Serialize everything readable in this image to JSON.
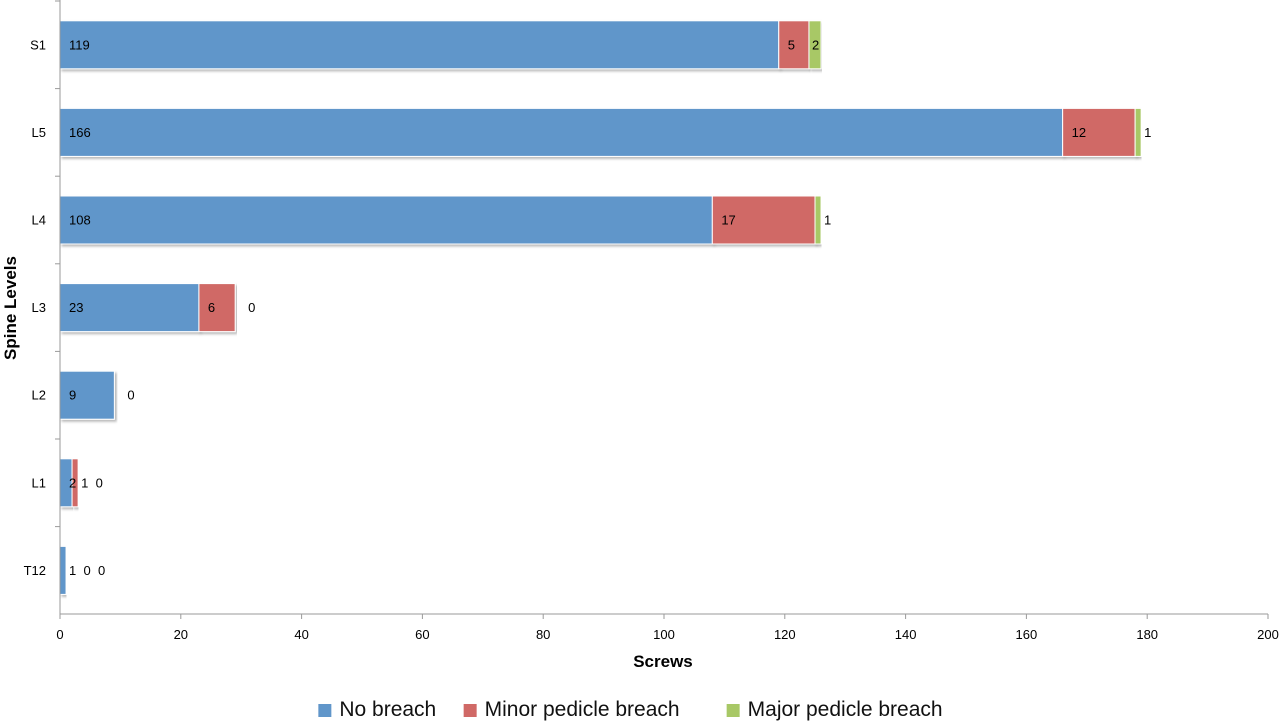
{
  "chart_data": {
    "type": "bar",
    "orientation": "horizontal",
    "stacked": true,
    "title": "",
    "xlabel": "Screws",
    "ylabel": "Spine Levels",
    "xlim": [
      0,
      200
    ],
    "x_ticks": [
      0,
      20,
      40,
      60,
      80,
      100,
      120,
      140,
      160,
      180,
      200
    ],
    "grid": false,
    "legend_position": "bottom",
    "categories": [
      "S1",
      "L5",
      "L4",
      "L3",
      "L2",
      "L1",
      "T12"
    ],
    "series": [
      {
        "name": "No breach",
        "color": "#6096CA",
        "values": [
          119,
          166,
          108,
          23,
          9,
          2,
          1
        ]
      },
      {
        "name": "Minor pedicle breach",
        "color": "#D06966",
        "values": [
          5,
          12,
          17,
          6,
          null,
          1,
          0
        ]
      },
      {
        "name": "Major pedicle breach",
        "color": "#A8C866",
        "values": [
          2,
          1,
          1,
          0,
          0,
          0,
          0
        ]
      }
    ]
  }
}
